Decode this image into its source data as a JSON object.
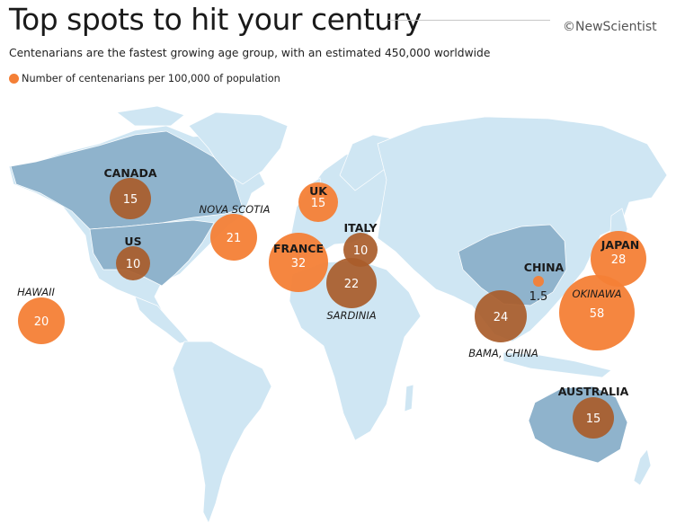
{
  "title": "Top spots to hit your century",
  "credit": "©NewScientist",
  "subtitle": "Centenarians are the fastest growing age group, with an estimated 450,000 worldwide",
  "legend": "Number of centenarians per 100,000 of population",
  "colors": {
    "ocean": "#ffffff",
    "land": "#cfe6f3",
    "highlight_land": "#8fb3cc",
    "bubble": "#f47f36",
    "bubble_on_land": "#a95c2a",
    "label": "#1a1a1a"
  },
  "places": [
    {
      "name": "CANADA",
      "value": "15",
      "italic": false
    },
    {
      "name": "US",
      "value": "10",
      "italic": false
    },
    {
      "name": "NOVA SCOTIA",
      "value": "21",
      "italic": true
    },
    {
      "name": "HAWAII",
      "value": "20",
      "italic": true
    },
    {
      "name": "UK",
      "value": "15",
      "italic": false
    },
    {
      "name": "FRANCE",
      "value": "32",
      "italic": false
    },
    {
      "name": "ITALY",
      "value": "10",
      "italic": false
    },
    {
      "name": "SARDINIA",
      "value": "22",
      "italic": true
    },
    {
      "name": "CHINA",
      "value": "1.5",
      "italic": false
    },
    {
      "name": "BAMA, CHINA",
      "value": "24",
      "italic": true
    },
    {
      "name": "JAPAN",
      "value": "28",
      "italic": false
    },
    {
      "name": "OKINAWA",
      "value": "58",
      "italic": true
    },
    {
      "name": "AUSTRALIA",
      "value": "15",
      "italic": false
    }
  ]
}
